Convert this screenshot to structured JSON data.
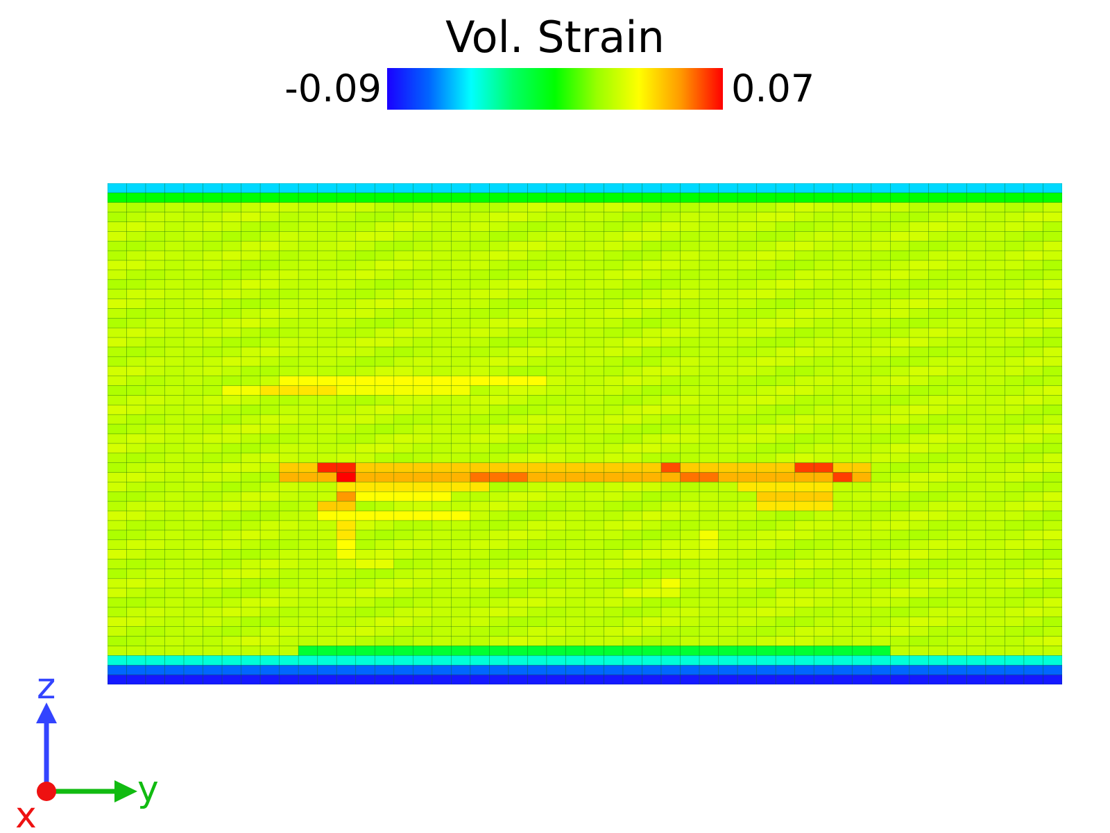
{
  "colorbar": {
    "title": "Vol. Strain",
    "min_label": "-0.09",
    "max_label": "0.07",
    "colors": [
      "#1a00ff",
      "#0066ff",
      "#00ffff",
      "#00ff66",
      "#00ff00",
      "#99ff00",
      "#ffff00",
      "#ff9900",
      "#ff0000"
    ]
  },
  "axes_triad": {
    "z_label": "z",
    "y_label": "y",
    "x_label": "x",
    "z_color": "#3344ff",
    "y_color": "#11bb11",
    "x_color": "#ee1111"
  },
  "chart_data": {
    "type": "heatmap",
    "title": "Vol. Strain",
    "colormap": "rainbow",
    "vmin": -0.09,
    "vmax": 0.07,
    "grid": "mesh",
    "columns": 50,
    "rows": 52,
    "cells": [
      {
        "row": 0,
        "cols": [
          0,
          49
        ],
        "value": -0.055
      },
      {
        "row": 1,
        "cols": [
          0,
          49
        ],
        "value": -0.01
      },
      {
        "row": 49,
        "cols": [
          0,
          49
        ],
        "value": -0.045
      },
      {
        "row": 50,
        "cols": [
          0,
          49
        ],
        "value": -0.07
      },
      {
        "row": 51,
        "cols": [
          0,
          49
        ],
        "value": -0.085
      },
      {
        "row": 48,
        "cols": [
          10,
          40
        ],
        "value": -0.02
      },
      {
        "row": 20,
        "cols": [
          9,
          22
        ],
        "value": 0.03
      },
      {
        "row": 21,
        "cols": [
          6,
          18
        ],
        "value": 0.028
      },
      {
        "row": 21,
        "cols": [
          8,
          11
        ],
        "value": 0.035
      },
      {
        "row": 29,
        "cols": [
          9,
          39
        ],
        "value": 0.04
      },
      {
        "row": 30,
        "cols": [
          9,
          39
        ],
        "value": 0.045
      },
      {
        "row": 29,
        "cols": [
          11,
          12
        ],
        "value": 0.065
      },
      {
        "row": 30,
        "cols": [
          12,
          12
        ],
        "value": 0.07
      },
      {
        "row": 29,
        "cols": [
          36,
          37
        ],
        "value": 0.062
      },
      {
        "row": 29,
        "cols": [
          29,
          29
        ],
        "value": 0.06
      },
      {
        "row": 30,
        "cols": [
          19,
          21
        ],
        "value": 0.055
      },
      {
        "row": 30,
        "cols": [
          30,
          31
        ],
        "value": 0.055
      },
      {
        "row": 30,
        "cols": [
          38,
          38
        ],
        "value": 0.062
      },
      {
        "row": 31,
        "cols": [
          12,
          19
        ],
        "value": 0.035
      },
      {
        "row": 31,
        "cols": [
          33,
          37
        ],
        "value": 0.035
      },
      {
        "row": 32,
        "cols": [
          12,
          17
        ],
        "value": 0.03
      },
      {
        "row": 32,
        "cols": [
          12,
          12
        ],
        "value": 0.05
      },
      {
        "row": 32,
        "cols": [
          34,
          37
        ],
        "value": 0.04
      },
      {
        "row": 33,
        "cols": [
          11,
          12
        ],
        "value": 0.04
      },
      {
        "row": 33,
        "cols": [
          35,
          35
        ],
        "value": 0.055
      },
      {
        "row": 33,
        "cols": [
          34,
          37
        ],
        "value": 0.035
      },
      {
        "row": 34,
        "cols": [
          12,
          12
        ],
        "value": 0.05
      },
      {
        "row": 34,
        "cols": [
          11,
          18
        ],
        "value": 0.03
      },
      {
        "row": 35,
        "cols": [
          12,
          12
        ],
        "value": 0.035
      },
      {
        "row": 36,
        "cols": [
          12,
          12
        ],
        "value": 0.035
      },
      {
        "row": 37,
        "cols": [
          12,
          12
        ],
        "value": 0.03
      },
      {
        "row": 38,
        "cols": [
          12,
          12
        ],
        "value": 0.028
      },
      {
        "row": 39,
        "cols": [
          13,
          14
        ],
        "value": 0.025
      },
      {
        "row": 36,
        "cols": [
          31,
          31
        ],
        "value": 0.028
      },
      {
        "row": 37,
        "cols": [
          31,
          31
        ],
        "value": 0.025
      },
      {
        "row": 38,
        "cols": [
          27,
          31
        ],
        "value": 0.022
      },
      {
        "row": 41,
        "cols": [
          29,
          29
        ],
        "value": 0.028
      },
      {
        "row": 42,
        "cols": [
          27,
          29
        ],
        "value": 0.024
      },
      {
        "row": 42,
        "cols": [
          35,
          37
        ],
        "value": 0.02
      }
    ]
  }
}
